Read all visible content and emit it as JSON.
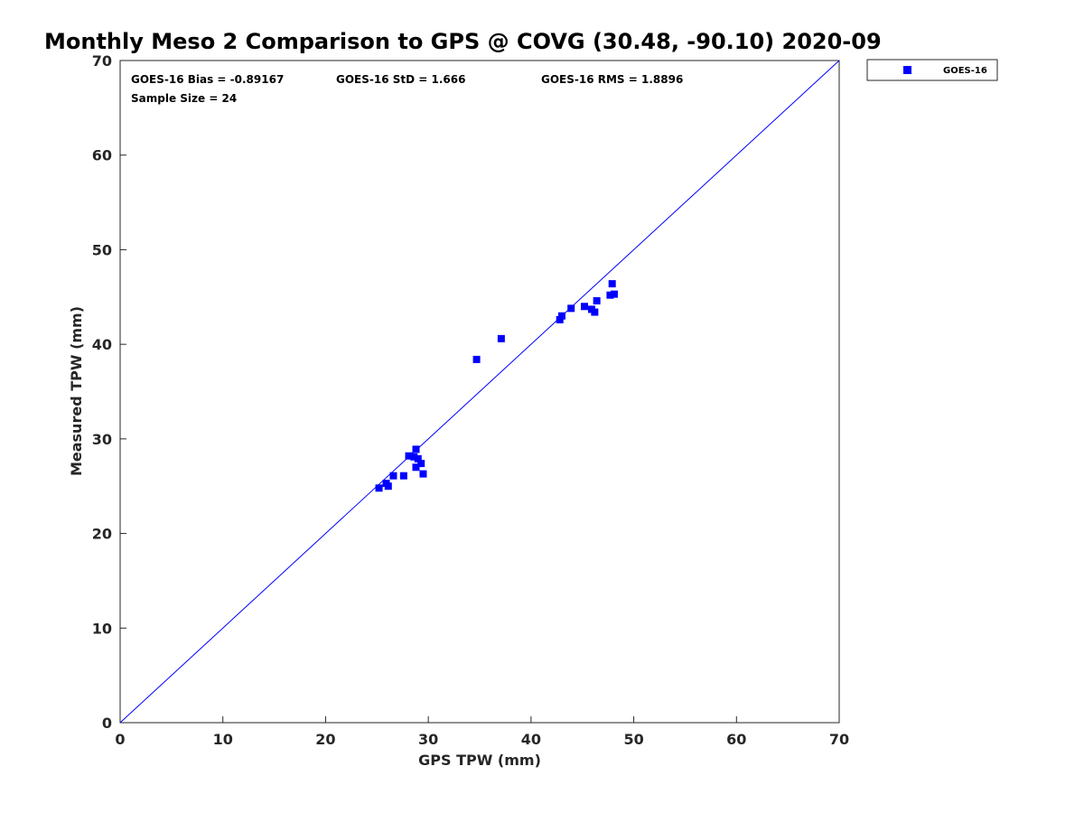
{
  "chart_data": {
    "type": "scatter",
    "title": "Monthly Meso 2 Comparison to GPS @ COVG (30.48, -90.10) 2020-09",
    "xlabel": "GPS TPW (mm)",
    "ylabel": "Measured TPW (mm)",
    "xlim": [
      0,
      70
    ],
    "ylim": [
      0,
      70
    ],
    "xticks": [
      0,
      10,
      20,
      30,
      40,
      50,
      60,
      70
    ],
    "yticks": [
      0,
      10,
      20,
      30,
      40,
      50,
      60,
      70
    ],
    "grid": false,
    "legend_position": "outside-top-right",
    "reference_line": {
      "x": [
        0,
        70
      ],
      "y": [
        0,
        70
      ],
      "color": "#0000ff"
    },
    "annotations": [
      "GOES-16 Bias = -0.89167",
      "GOES-16 StD = 1.666",
      "GOES-16 RMS = 1.8896",
      "Sample Size = 24"
    ],
    "series": [
      {
        "name": "GOES-16",
        "color": "#0000ff",
        "marker": "square",
        "points": [
          {
            "x": 25.2,
            "y": 24.8
          },
          {
            "x": 25.9,
            "y": 25.3
          },
          {
            "x": 26.1,
            "y": 25.0
          },
          {
            "x": 26.6,
            "y": 26.1
          },
          {
            "x": 27.6,
            "y": 26.1
          },
          {
            "x": 28.1,
            "y": 28.2
          },
          {
            "x": 28.6,
            "y": 28.1
          },
          {
            "x": 28.8,
            "y": 28.9
          },
          {
            "x": 29.0,
            "y": 27.9
          },
          {
            "x": 28.8,
            "y": 27.0
          },
          {
            "x": 29.3,
            "y": 27.4
          },
          {
            "x": 29.5,
            "y": 26.3
          },
          {
            "x": 34.7,
            "y": 38.4
          },
          {
            "x": 37.1,
            "y": 40.6
          },
          {
            "x": 42.8,
            "y": 42.6
          },
          {
            "x": 43.0,
            "y": 43.0
          },
          {
            "x": 43.9,
            "y": 43.8
          },
          {
            "x": 45.2,
            "y": 44.0
          },
          {
            "x": 45.9,
            "y": 43.7
          },
          {
            "x": 46.2,
            "y": 43.4
          },
          {
            "x": 46.4,
            "y": 44.6
          },
          {
            "x": 47.7,
            "y": 45.2
          },
          {
            "x": 47.9,
            "y": 46.4
          },
          {
            "x": 48.1,
            "y": 45.3
          }
        ]
      }
    ]
  }
}
